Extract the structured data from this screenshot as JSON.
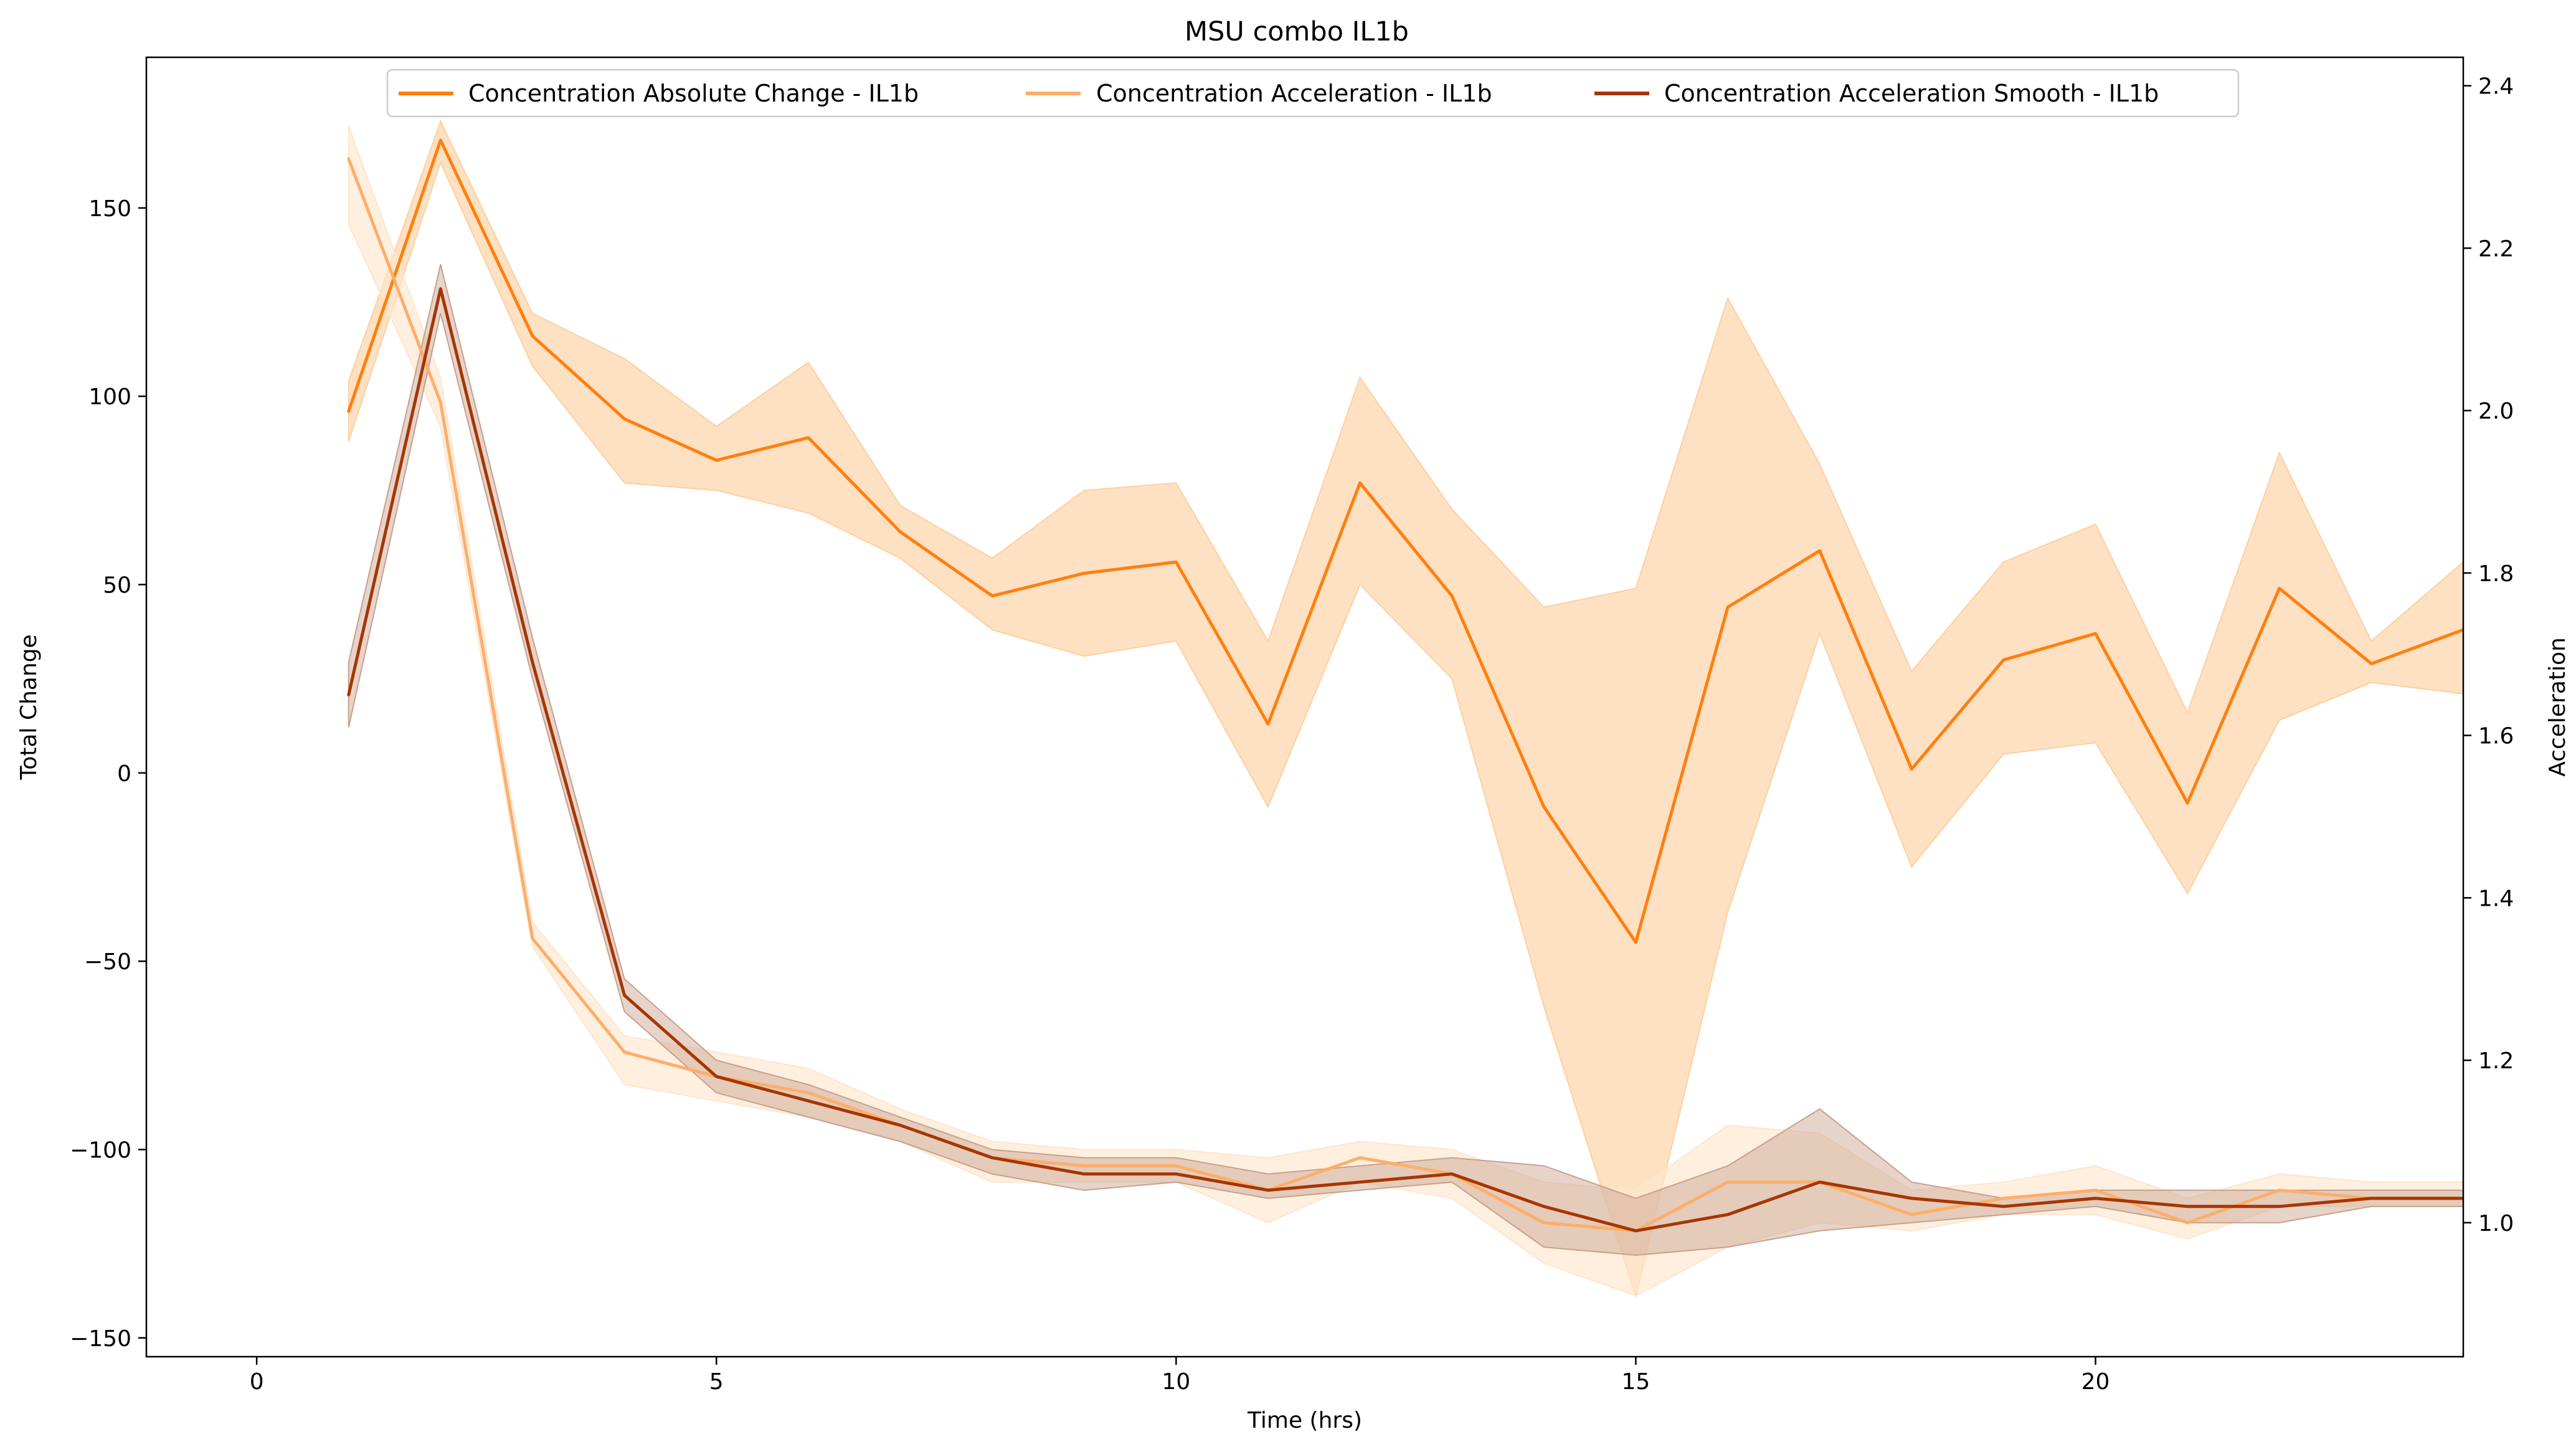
{
  "chart_data": {
    "type": "line",
    "title": "MSU combo IL1b",
    "xlabel": "Time (hrs)",
    "ylabel": "Total Change",
    "ylabel_right": "Acceleration",
    "xlim": [
      -1.2,
      24
    ],
    "ylim": [
      -155,
      190
    ],
    "ylim_right": [
      0.835,
      2.435
    ],
    "x_ticks": [
      0,
      5,
      10,
      15,
      20
    ],
    "y_ticks": [
      -150,
      -100,
      -50,
      0,
      50,
      100,
      150
    ],
    "y_ticks_right": [
      1.0,
      1.2,
      1.4,
      1.6,
      1.8,
      2.0,
      2.2,
      2.4
    ],
    "grid": false,
    "legend_position": "top-center",
    "x": [
      1,
      2,
      3,
      4,
      5,
      6,
      7,
      8,
      9,
      10,
      11,
      12,
      13,
      14,
      15,
      16,
      17,
      18,
      19,
      20,
      21,
      22,
      23,
      24
    ],
    "series": [
      {
        "name": "Concentration Absolute Change  - IL1b",
        "axis": "left",
        "color": "#ff7f0e",
        "band_color": "#fdd0a2",
        "values": [
          96,
          168,
          116,
          94,
          83,
          89,
          64,
          47,
          53,
          56,
          13,
          77,
          47,
          -9,
          -45,
          44,
          59,
          1,
          30,
          37,
          -8,
          49,
          29,
          38
        ],
        "lower": [
          88,
          162,
          108,
          77,
          75,
          69,
          57,
          38,
          31,
          35,
          -9,
          50,
          25,
          -62,
          -139,
          -37,
          37,
          -25,
          5,
          8,
          -32,
          14,
          24,
          21
        ],
        "upper": [
          104,
          173,
          122,
          110,
          92,
          109,
          71,
          57,
          75,
          77,
          35,
          105,
          70,
          44,
          49,
          126,
          82,
          27,
          56,
          66,
          16,
          85,
          35,
          56
        ]
      },
      {
        "name": "Concentration Acceleration  - IL1b",
        "axis": "right",
        "color": "#fdae6b",
        "band_color": "#fee6ce",
        "values": [
          2.31,
          2.01,
          1.35,
          1.21,
          1.18,
          1.16,
          1.12,
          1.08,
          1.07,
          1.07,
          1.04,
          1.08,
          1.06,
          1.0,
          0.99,
          1.05,
          1.05,
          1.01,
          1.03,
          1.04,
          1.0,
          1.04,
          1.03,
          1.03
        ],
        "lower": [
          2.23,
          1.98,
          1.34,
          1.17,
          1.15,
          1.13,
          1.1,
          1.05,
          1.05,
          1.05,
          1.0,
          1.05,
          1.03,
          0.95,
          0.91,
          0.97,
          1.0,
          0.99,
          1.01,
          1.01,
          0.98,
          1.02,
          1.02,
          1.02
        ],
        "upper": [
          2.35,
          2.04,
          1.37,
          1.23,
          1.21,
          1.19,
          1.14,
          1.1,
          1.09,
          1.09,
          1.08,
          1.1,
          1.09,
          1.05,
          1.04,
          1.12,
          1.11,
          1.04,
          1.05,
          1.07,
          1.03,
          1.06,
          1.05,
          1.05
        ]
      },
      {
        "name": "Concentration Acceleration Smooth  - IL1b",
        "axis": "right",
        "color": "#a63603",
        "band_color": "#c8a08c",
        "values": [
          1.65,
          2.15,
          1.69,
          1.28,
          1.18,
          1.15,
          1.12,
          1.08,
          1.06,
          1.06,
          1.04,
          1.05,
          1.06,
          1.02,
          0.99,
          1.01,
          1.05,
          1.03,
          1.02,
          1.03,
          1.02,
          1.02,
          1.03,
          1.03
        ],
        "lower": [
          1.61,
          2.12,
          1.67,
          1.26,
          1.16,
          1.13,
          1.1,
          1.06,
          1.04,
          1.05,
          1.03,
          1.04,
          1.05,
          0.97,
          0.96,
          0.97,
          0.99,
          1.0,
          1.01,
          1.02,
          1.0,
          1.0,
          1.02,
          1.02
        ],
        "upper": [
          1.69,
          2.18,
          1.72,
          1.3,
          1.2,
          1.17,
          1.13,
          1.09,
          1.08,
          1.08,
          1.06,
          1.07,
          1.08,
          1.07,
          1.03,
          1.07,
          1.14,
          1.05,
          1.03,
          1.04,
          1.04,
          1.04,
          1.04,
          1.04
        ]
      }
    ]
  }
}
